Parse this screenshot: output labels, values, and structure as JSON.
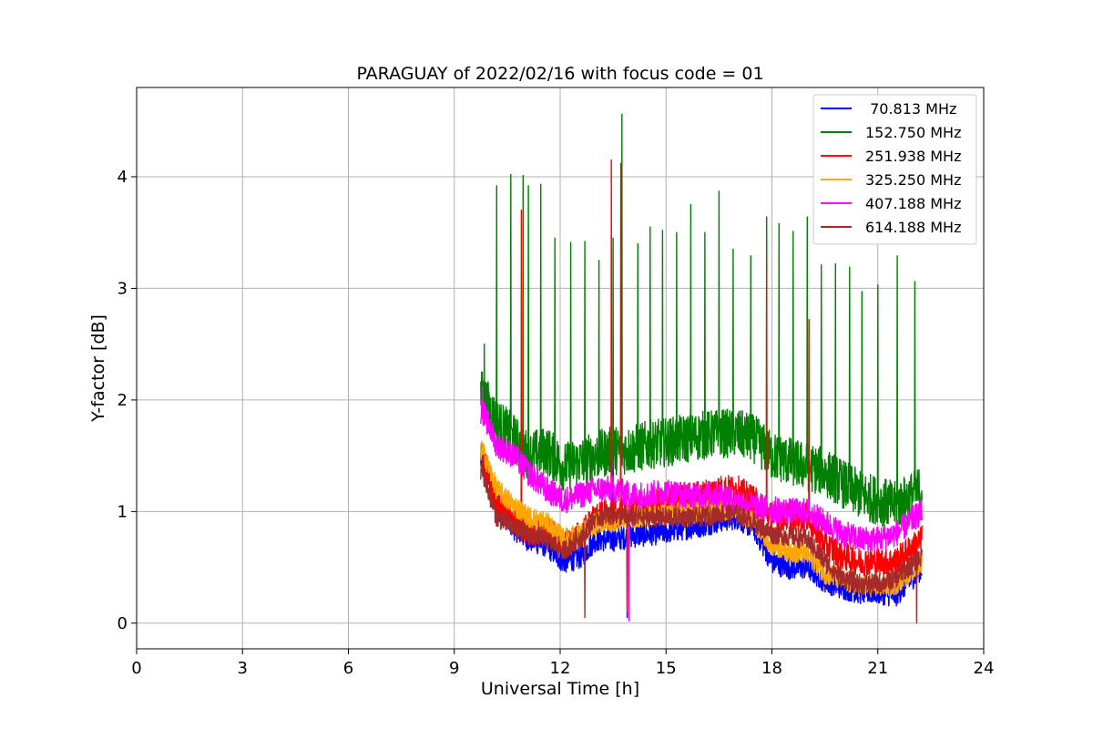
{
  "chart_data": {
    "type": "line",
    "title": "PARAGUAY of 2022/02/16 with focus code = 01",
    "xlabel": "Universal Time [h]",
    "ylabel": "Y-factor [dB]",
    "xlim": [
      0,
      24
    ],
    "ylim": [
      -0.23,
      4.8
    ],
    "x_ticks": [
      0,
      3,
      6,
      9,
      12,
      15,
      18,
      21,
      24
    ],
    "x_tick_labels": [
      "0",
      "3",
      "6",
      "9",
      "12",
      "15",
      "18",
      "21",
      "24"
    ],
    "y_ticks": [
      0,
      1,
      2,
      3,
      4
    ],
    "y_tick_labels": [
      "0",
      "1",
      "2",
      "3",
      "4"
    ],
    "grid": true,
    "legend_position": "top-right",
    "x_range_data": [
      9.75,
      22.25
    ],
    "series": [
      {
        "name": " 70.813 MHz",
        "color": "#0000ff",
        "base": [
          [
            9.8,
            1.45
          ],
          [
            10.2,
            1.05
          ],
          [
            10.7,
            0.85
          ],
          [
            11.1,
            0.75
          ],
          [
            11.6,
            0.7
          ],
          [
            12.1,
            0.55
          ],
          [
            12.6,
            0.6
          ],
          [
            13.0,
            0.75
          ],
          [
            13.5,
            0.75
          ],
          [
            14.0,
            0.78
          ],
          [
            14.5,
            0.8
          ],
          [
            15.0,
            0.82
          ],
          [
            15.5,
            0.85
          ],
          [
            16.0,
            0.88
          ],
          [
            16.5,
            0.92
          ],
          [
            17.0,
            0.95
          ],
          [
            17.5,
            0.85
          ],
          [
            18.0,
            0.55
          ],
          [
            18.5,
            0.5
          ],
          [
            19.0,
            0.5
          ],
          [
            19.5,
            0.38
          ],
          [
            20.0,
            0.32
          ],
          [
            20.5,
            0.28
          ],
          [
            21.0,
            0.28
          ],
          [
            21.5,
            0.25
          ],
          [
            22.25,
            0.5
          ]
        ],
        "noise": 0.11,
        "spikes": [
          [
            13.5,
            1.5
          ],
          [
            13.9,
            0.05
          ]
        ]
      },
      {
        "name": "152.750 MHz",
        "color": "#008000",
        "base": [
          [
            9.8,
            2.05
          ],
          [
            10.2,
            1.8
          ],
          [
            10.7,
            1.65
          ],
          [
            11.1,
            1.5
          ],
          [
            11.6,
            1.55
          ],
          [
            12.1,
            1.4
          ],
          [
            12.6,
            1.45
          ],
          [
            13.0,
            1.5
          ],
          [
            13.5,
            1.55
          ],
          [
            14.0,
            1.55
          ],
          [
            14.5,
            1.6
          ],
          [
            15.0,
            1.62
          ],
          [
            15.5,
            1.65
          ],
          [
            16.0,
            1.68
          ],
          [
            16.5,
            1.7
          ],
          [
            17.0,
            1.7
          ],
          [
            17.5,
            1.65
          ],
          [
            18.0,
            1.5
          ],
          [
            18.5,
            1.45
          ],
          [
            19.0,
            1.4
          ],
          [
            19.5,
            1.35
          ],
          [
            20.0,
            1.25
          ],
          [
            20.5,
            1.15
          ],
          [
            21.0,
            1.1
          ],
          [
            21.5,
            1.05
          ],
          [
            22.25,
            1.2
          ]
        ],
        "noise": 0.22,
        "spikes": [
          [
            9.85,
            2.5
          ],
          [
            10.2,
            3.92
          ],
          [
            10.6,
            4.02
          ],
          [
            10.95,
            4.01
          ],
          [
            11.1,
            3.92
          ],
          [
            11.45,
            3.93
          ],
          [
            11.85,
            3.45
          ],
          [
            12.3,
            3.41
          ],
          [
            12.7,
            3.42
          ],
          [
            13.1,
            3.25
          ],
          [
            13.5,
            3.45
          ],
          [
            13.75,
            4.56
          ],
          [
            14.2,
            3.4
          ],
          [
            14.55,
            3.55
          ],
          [
            14.9,
            3.52
          ],
          [
            15.3,
            3.5
          ],
          [
            15.7,
            3.75
          ],
          [
            16.1,
            3.5
          ],
          [
            16.5,
            3.87
          ],
          [
            16.9,
            3.35
          ],
          [
            17.4,
            3.29
          ],
          [
            17.85,
            3.64
          ],
          [
            18.2,
            3.58
          ],
          [
            18.6,
            3.51
          ],
          [
            19.0,
            3.64
          ],
          [
            19.4,
            3.21
          ],
          [
            19.8,
            3.22
          ],
          [
            20.2,
            3.19
          ],
          [
            20.55,
            2.97
          ],
          [
            21.0,
            3.03
          ],
          [
            21.55,
            3.29
          ],
          [
            22.05,
            3.06
          ]
        ]
      },
      {
        "name": "251.938 MHz",
        "color": "#ff0000",
        "base": [
          [
            9.8,
            1.5
          ],
          [
            10.2,
            1.1
          ],
          [
            10.7,
            0.95
          ],
          [
            11.1,
            0.8
          ],
          [
            11.6,
            0.85
          ],
          [
            12.1,
            0.7
          ],
          [
            12.6,
            0.8
          ],
          [
            13.0,
            0.95
          ],
          [
            13.5,
            0.98
          ],
          [
            14.0,
            1.0
          ],
          [
            14.5,
            1.05
          ],
          [
            15.0,
            1.1
          ],
          [
            15.5,
            1.12
          ],
          [
            16.0,
            1.15
          ],
          [
            16.5,
            1.2
          ],
          [
            17.0,
            1.2
          ],
          [
            17.5,
            1.1
          ],
          [
            18.0,
            0.95
          ],
          [
            18.5,
            0.95
          ],
          [
            19.0,
            0.95
          ],
          [
            19.5,
            0.7
          ],
          [
            20.0,
            0.6
          ],
          [
            20.5,
            0.55
          ],
          [
            21.0,
            0.55
          ],
          [
            21.5,
            0.55
          ],
          [
            22.25,
            0.75
          ]
        ],
        "noise": 0.13,
        "spikes": [
          [
            10.9,
            3.7
          ],
          [
            13.45,
            4.15
          ],
          [
            13.72,
            4.12
          ],
          [
            17.85,
            3.25
          ],
          [
            19.05,
            2.72
          ]
        ]
      },
      {
        "name": "325.250 MHz",
        "color": "#ffa500",
        "base": [
          [
            9.8,
            1.55
          ],
          [
            10.2,
            1.2
          ],
          [
            10.7,
            1.05
          ],
          [
            11.1,
            0.95
          ],
          [
            11.6,
            0.9
          ],
          [
            12.1,
            0.75
          ],
          [
            12.6,
            0.8
          ],
          [
            13.0,
            0.9
          ],
          [
            13.5,
            0.92
          ],
          [
            14.0,
            0.95
          ],
          [
            14.5,
            0.97
          ],
          [
            15.0,
            0.98
          ],
          [
            15.5,
            1.0
          ],
          [
            16.0,
            1.0
          ],
          [
            16.5,
            1.02
          ],
          [
            17.0,
            1.02
          ],
          [
            17.5,
            0.9
          ],
          [
            18.0,
            0.7
          ],
          [
            18.5,
            0.65
          ],
          [
            19.0,
            0.62
          ],
          [
            19.5,
            0.45
          ],
          [
            20.0,
            0.38
          ],
          [
            20.5,
            0.33
          ],
          [
            21.0,
            0.33
          ],
          [
            21.5,
            0.35
          ],
          [
            22.25,
            0.55
          ]
        ],
        "noise": 0.1,
        "spikes": []
      },
      {
        "name": "407.188 MHz",
        "color": "#ff00ff",
        "base": [
          [
            9.8,
            1.9
          ],
          [
            10.2,
            1.6
          ],
          [
            10.7,
            1.5
          ],
          [
            11.1,
            1.35
          ],
          [
            11.6,
            1.2
          ],
          [
            12.1,
            1.1
          ],
          [
            12.6,
            1.15
          ],
          [
            13.0,
            1.2
          ],
          [
            13.5,
            1.2
          ],
          [
            14.0,
            1.15
          ],
          [
            14.5,
            1.15
          ],
          [
            15.0,
            1.18
          ],
          [
            15.5,
            1.15
          ],
          [
            16.0,
            1.15
          ],
          [
            16.5,
            1.15
          ],
          [
            17.0,
            1.1
          ],
          [
            17.5,
            1.05
          ],
          [
            18.0,
            1.02
          ],
          [
            18.5,
            1.0
          ],
          [
            19.0,
            1.0
          ],
          [
            19.5,
            0.9
          ],
          [
            20.0,
            0.8
          ],
          [
            20.5,
            0.75
          ],
          [
            21.0,
            0.75
          ],
          [
            21.5,
            0.8
          ],
          [
            22.25,
            1.0
          ]
        ],
        "noise": 0.12,
        "spikes": [
          [
            9.8,
            2.12
          ],
          [
            13.95,
            0.02
          ]
        ]
      },
      {
        "name": "614.188 MHz",
        "color": "#a52a2a",
        "base": [
          [
            9.8,
            1.35
          ],
          [
            10.2,
            0.95
          ],
          [
            10.7,
            0.85
          ],
          [
            11.1,
            0.8
          ],
          [
            11.6,
            0.75
          ],
          [
            12.1,
            0.65
          ],
          [
            12.6,
            0.78
          ],
          [
            13.0,
            0.95
          ],
          [
            13.5,
            0.97
          ],
          [
            14.0,
            0.95
          ],
          [
            14.5,
            0.95
          ],
          [
            15.0,
            0.95
          ],
          [
            15.5,
            0.95
          ],
          [
            16.0,
            0.95
          ],
          [
            16.5,
            0.98
          ],
          [
            17.0,
            0.98
          ],
          [
            17.5,
            0.9
          ],
          [
            18.0,
            0.8
          ],
          [
            18.5,
            0.78
          ],
          [
            19.0,
            0.75
          ],
          [
            19.5,
            0.55
          ],
          [
            20.0,
            0.4
          ],
          [
            20.5,
            0.35
          ],
          [
            21.0,
            0.35
          ],
          [
            21.5,
            0.4
          ],
          [
            22.25,
            0.6
          ]
        ],
        "noise": 0.09,
        "spikes": [
          [
            12.7,
            0.05
          ],
          [
            13.9,
            0.1
          ],
          [
            22.1,
            0.0
          ]
        ]
      }
    ]
  }
}
